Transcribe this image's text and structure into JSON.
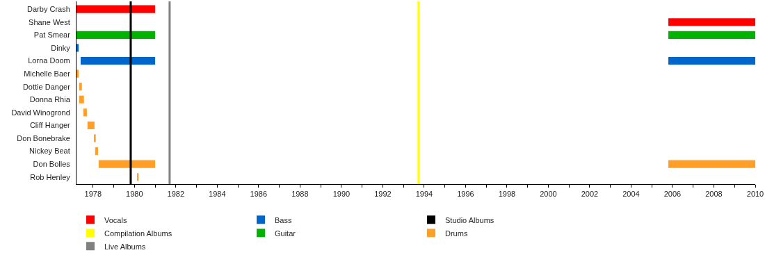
{
  "chart_data": {
    "type": "bar",
    "orientation": "horizontal",
    "categories": [
      "Darby Crash",
      "Shane West",
      "Pat Smear",
      "Dinky",
      "Lorna Doom",
      "Michelle Baer",
      "Dottie Danger",
      "Donna Rhia",
      "David Winogrond",
      "Cliff Hanger",
      "Don Bonebrake",
      "Nickey Beat",
      "Don Bolles",
      "Rob Henley"
    ],
    "series": [
      {
        "name": "Vocals",
        "color": "#ff0000",
        "base": [
          1977.2,
          null,
          null,
          null,
          null,
          null,
          null,
          null,
          null,
          null,
          null,
          null,
          null,
          null
        ],
        "values": [
          3.8,
          null,
          null,
          null,
          null,
          null,
          null,
          null,
          null,
          null,
          null,
          null,
          null,
          null
        ]
      },
      {
        "color": "#ff0000",
        "base": [
          null,
          2005.8,
          null,
          null,
          null,
          null,
          null,
          null,
          null,
          null,
          null,
          null,
          null,
          null
        ],
        "values": [
          null,
          4.2,
          null,
          null,
          null,
          null,
          null,
          null,
          null,
          null,
          null,
          null,
          null,
          null
        ]
      },
      {
        "name": "Guitar",
        "color": "#00b300",
        "base": [
          null,
          null,
          1977.2,
          null,
          null,
          null,
          null,
          null,
          null,
          null,
          null,
          null,
          null,
          null
        ],
        "values": [
          null,
          null,
          3.8,
          null,
          null,
          null,
          null,
          null,
          null,
          null,
          null,
          null,
          null,
          null
        ]
      },
      {
        "color": "#00b300",
        "base": [
          null,
          null,
          2005.8,
          null,
          null,
          null,
          null,
          null,
          null,
          null,
          null,
          null,
          null,
          null
        ],
        "values": [
          null,
          null,
          4.2,
          null,
          null,
          null,
          null,
          null,
          null,
          null,
          null,
          null,
          null,
          null
        ]
      },
      {
        "name": "Bass",
        "color": "#0066cc",
        "base": [
          null,
          null,
          null,
          1977.2,
          1977.4,
          null,
          null,
          null,
          null,
          null,
          null,
          null,
          null,
          null
        ],
        "values": [
          null,
          null,
          null,
          0.1,
          3.6,
          null,
          null,
          null,
          null,
          null,
          null,
          null,
          null,
          null
        ]
      },
      {
        "color": "#0066cc",
        "base": [
          null,
          null,
          null,
          null,
          2005.8,
          null,
          null,
          null,
          null,
          null,
          null,
          null,
          null,
          null
        ],
        "values": [
          null,
          null,
          null,
          null,
          4.2,
          null,
          null,
          null,
          null,
          null,
          null,
          null,
          null,
          null
        ]
      },
      {
        "name": "Drums",
        "color": "#ff9f28",
        "base": [
          null,
          null,
          null,
          null,
          null,
          1977.2,
          1977.33,
          1977.33,
          1977.53,
          1977.73,
          1978.07,
          1978.1,
          1978.27,
          1980.15
        ],
        "values": [
          null,
          null,
          null,
          null,
          null,
          0.1,
          0.13,
          0.23,
          0.17,
          0.34,
          0.06,
          0.14,
          2.73,
          0.05
        ]
      },
      {
        "color": "#ff9f28",
        "base": [
          null,
          null,
          null,
          null,
          null,
          null,
          null,
          null,
          null,
          null,
          null,
          null,
          2005.8,
          null
        ],
        "values": [
          null,
          null,
          null,
          null,
          null,
          null,
          null,
          null,
          null,
          null,
          null,
          null,
          4.2,
          null
        ]
      }
    ],
    "ref_lines": [
      {
        "axis": "x",
        "value": 1979.82,
        "label": "Studio Albums",
        "color": "#000000"
      },
      {
        "axis": "x",
        "value": 1981.7,
        "label": "Live Albums",
        "color": "#808080"
      },
      {
        "axis": "x",
        "value": 1993.73,
        "label": "Compilation Albums",
        "color": "#ffff00"
      }
    ],
    "xlim": [
      1977.2,
      2010
    ],
    "xticks": [
      1978,
      {
        "value": 1979,
        "label": null
      },
      1980,
      {
        "value": 1981,
        "label": null
      },
      1982,
      {
        "value": 1983,
        "label": null
      },
      1984,
      {
        "value": 1985,
        "label": null
      },
      1986,
      {
        "value": 1987,
        "label": null
      },
      1988,
      {
        "value": 1989,
        "label": null
      },
      1990,
      {
        "value": 1991,
        "label": null
      },
      1992,
      {
        "value": 1993,
        "label": null
      },
      1994,
      {
        "value": 1995,
        "label": null
      },
      1996,
      {
        "value": 1997,
        "label": null
      },
      1998,
      {
        "value": 1999,
        "label": null
      },
      2000,
      {
        "value": 2001,
        "label": null
      },
      2002,
      {
        "value": 2003,
        "label": null
      },
      2004,
      {
        "value": 2005,
        "label": null
      },
      2006,
      {
        "value": 2007,
        "label": null
      },
      2008,
      {
        "value": 2009,
        "label": null
      },
      2010
    ],
    "legend": "bottom"
  }
}
